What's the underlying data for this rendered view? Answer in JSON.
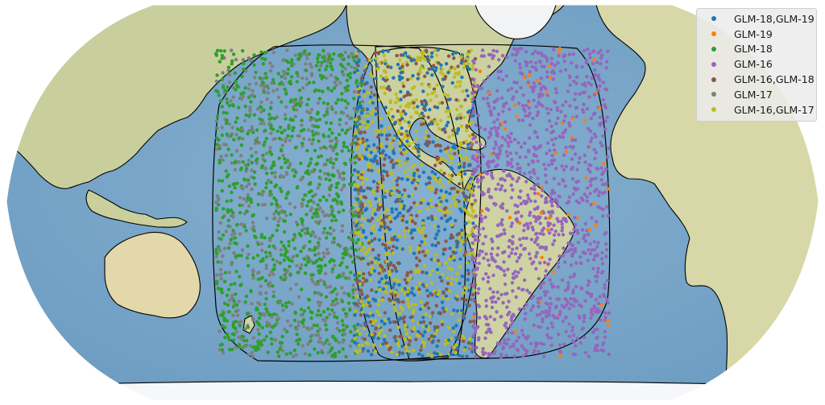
{
  "map": {
    "projection": "Robinson (Pacific-centered)",
    "basemap": "shaded relief",
    "coastlines": true,
    "colors": {
      "ocean": "#7ea8c9",
      "land_green": "#c3cf9e",
      "land_tan": "#e7dbb0",
      "ice": "#f4f6f8",
      "coastline": "#000000",
      "coverage_outline": "#000000"
    }
  },
  "coverage_regions": [
    "GLM-17",
    "GLM-18",
    "GLM-16"
  ],
  "legend": {
    "location": "top-right",
    "entries": [
      {
        "label": "GLM-18,GLM-19",
        "color": "#1f77b4"
      },
      {
        "label": "GLM-19",
        "color": "#ff7f0e"
      },
      {
        "label": "GLM-18",
        "color": "#2ca02c"
      },
      {
        "label": "GLM-16",
        "color": "#9467bd"
      },
      {
        "label": "GLM-16,GLM-18",
        "color": "#8c564b"
      },
      {
        "label": "GLM-17",
        "color": "#7f7f7f"
      },
      {
        "label": "GLM-16,GLM-17",
        "color": "#bcbd22"
      }
    ]
  }
}
